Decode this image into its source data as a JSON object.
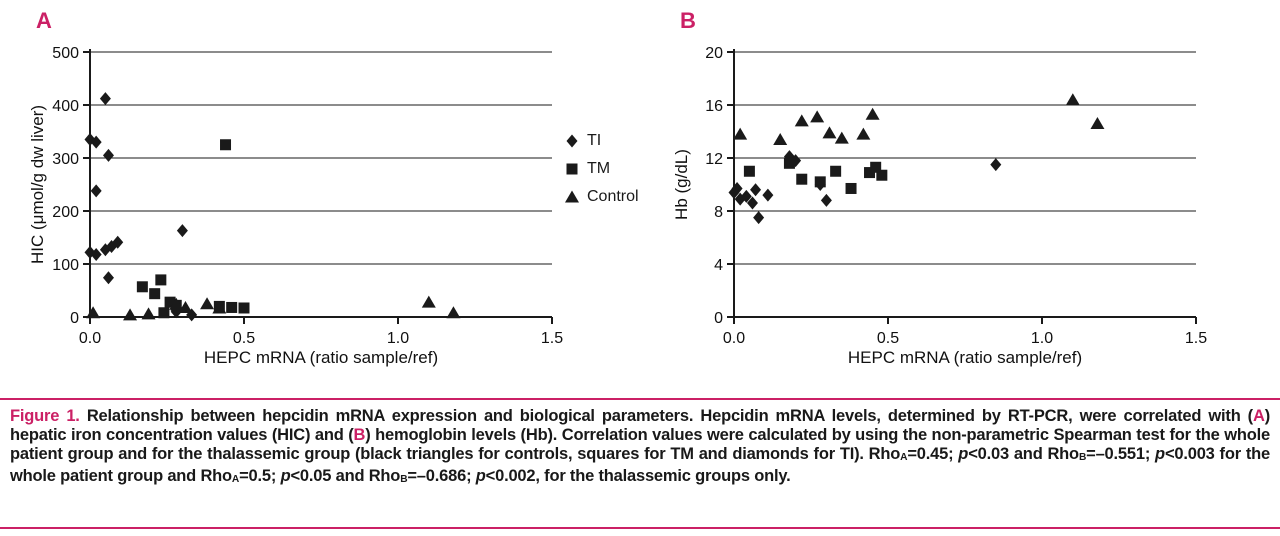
{
  "colors": {
    "accent": "#cb2065",
    "marker": "#1a1a1a"
  },
  "panels": [
    {
      "label": "A"
    },
    {
      "label": "B"
    }
  ],
  "legend": {
    "items": [
      {
        "label": "TI",
        "marker": "diamond"
      },
      {
        "label": "TM",
        "marker": "square"
      },
      {
        "label": "Control",
        "marker": "triangle"
      }
    ]
  },
  "chart_data": [
    {
      "type": "scatter",
      "panel": "A",
      "xlabel": "HEPC mRNA (ratio sample/ref)",
      "ylabel": "HIC (μmol/g dw liver)",
      "xlim": [
        0,
        1.5
      ],
      "ylim": [
        0,
        500
      ],
      "xticks": [
        0,
        0.5,
        1.0,
        1.5
      ],
      "xtick_labels": [
        "0.0",
        "0.5",
        "1.0",
        "1.5"
      ],
      "yticks": [
        0,
        100,
        200,
        300,
        400,
        500
      ],
      "ytick_labels": [
        "0",
        "100",
        "200",
        "300",
        "400",
        "500"
      ],
      "grid": "horizontal",
      "legend_position": "right-of-panel-A",
      "series": [
        {
          "name": "TI",
          "marker": "diamond",
          "points": [
            [
              0.0,
              335
            ],
            [
              0.02,
              330
            ],
            [
              0.05,
              412
            ],
            [
              0.06,
              305
            ],
            [
              0.02,
              238
            ],
            [
              0.0,
              122
            ],
            [
              0.02,
              118
            ],
            [
              0.05,
              127
            ],
            [
              0.07,
              133
            ],
            [
              0.09,
              141
            ],
            [
              0.06,
              74
            ],
            [
              0.3,
              163
            ],
            [
              0.28,
              10
            ],
            [
              0.33,
              4
            ]
          ]
        },
        {
          "name": "TM",
          "marker": "square",
          "points": [
            [
              0.44,
              325
            ],
            [
              0.17,
              57
            ],
            [
              0.21,
              44
            ],
            [
              0.23,
              70
            ],
            [
              0.26,
              28
            ],
            [
              0.28,
              22
            ],
            [
              0.42,
              20
            ],
            [
              0.46,
              18
            ],
            [
              0.5,
              17
            ],
            [
              0.24,
              8
            ]
          ]
        },
        {
          "name": "Control",
          "marker": "triangle",
          "points": [
            [
              0.01,
              8
            ],
            [
              0.13,
              4
            ],
            [
              0.19,
              6
            ],
            [
              0.28,
              24
            ],
            [
              0.31,
              18
            ],
            [
              0.38,
              25
            ],
            [
              0.42,
              17
            ],
            [
              1.1,
              28
            ],
            [
              1.18,
              8
            ]
          ]
        }
      ]
    },
    {
      "type": "scatter",
      "panel": "B",
      "xlabel": "HEPC mRNA (ratio sample/ref)",
      "ylabel": "Hb (g/dL)",
      "xlim": [
        0,
        1.5
      ],
      "ylim": [
        0,
        20
      ],
      "xticks": [
        0,
        0.5,
        1.0,
        1.5
      ],
      "xtick_labels": [
        "0.0",
        "0.5",
        "1.0",
        "1.5"
      ],
      "yticks": [
        0,
        4,
        8,
        12,
        16,
        20
      ],
      "ytick_labels": [
        "0",
        "4",
        "8",
        "12",
        "16",
        "20"
      ],
      "grid": "horizontal",
      "series": [
        {
          "name": "TI",
          "marker": "diamond",
          "points": [
            [
              0.0,
              9.4
            ],
            [
              0.01,
              9.7
            ],
            [
              0.02,
              8.9
            ],
            [
              0.04,
              9.1
            ],
            [
              0.06,
              8.6
            ],
            [
              0.07,
              9.6
            ],
            [
              0.08,
              7.5
            ],
            [
              0.11,
              9.2
            ],
            [
              0.18,
              12.1
            ],
            [
              0.2,
              11.8
            ],
            [
              0.28,
              10.0
            ],
            [
              0.3,
              8.8
            ],
            [
              0.85,
              11.5
            ]
          ]
        },
        {
          "name": "TM",
          "marker": "square",
          "points": [
            [
              0.05,
              11.0
            ],
            [
              0.18,
              11.6
            ],
            [
              0.22,
              10.4
            ],
            [
              0.28,
              10.2
            ],
            [
              0.33,
              11.0
            ],
            [
              0.38,
              9.7
            ],
            [
              0.44,
              10.9
            ],
            [
              0.46,
              11.3
            ],
            [
              0.48,
              10.7
            ]
          ]
        },
        {
          "name": "Control",
          "marker": "triangle",
          "points": [
            [
              0.02,
              13.8
            ],
            [
              0.15,
              13.4
            ],
            [
              0.22,
              14.8
            ],
            [
              0.27,
              15.1
            ],
            [
              0.31,
              13.9
            ],
            [
              0.35,
              13.5
            ],
            [
              0.42,
              13.8
            ],
            [
              0.45,
              15.3
            ],
            [
              1.1,
              16.4
            ],
            [
              1.18,
              14.6
            ]
          ]
        }
      ]
    }
  ],
  "caption": {
    "segments": [
      {
        "style": "pink",
        "text": "Figure 1. "
      },
      {
        "style": "text",
        "text": "Relationship between hepcidin mRNA expression and biological parameters. Hepcidin mRNA levels, determined by RT-PCR, were correlated with ("
      },
      {
        "style": "pink",
        "text": "A"
      },
      {
        "style": "text",
        "text": ") hepatic iron concentration values (HIC) and ("
      },
      {
        "style": "pink",
        "text": "B"
      },
      {
        "style": "text",
        "text": ") hemoglobin levels (Hb). Correlation values were calculated by using the non-parametric Spearman test for the whole patient group and for the thalassemic group (black triangles for controls, squares for TM and diamonds for TI). Rho"
      },
      {
        "style": "sub",
        "text": "A"
      },
      {
        "style": "text",
        "text": "=0.45; "
      },
      {
        "style": "italic",
        "text": "p"
      },
      {
        "style": "text",
        "text": "<0.03 and Rho"
      },
      {
        "style": "sub",
        "text": "B"
      },
      {
        "style": "text",
        "text": "=–0.551; "
      },
      {
        "style": "italic",
        "text": "p"
      },
      {
        "style": "text",
        "text": "<0.003 for the whole patient group and Rho"
      },
      {
        "style": "sub",
        "text": "A"
      },
      {
        "style": "text",
        "text": "=0.5; "
      },
      {
        "style": "italic",
        "text": "p"
      },
      {
        "style": "text",
        "text": "<0.05 and Rho"
      },
      {
        "style": "sub",
        "text": "B"
      },
      {
        "style": "text",
        "text": "=–0.686; "
      },
      {
        "style": "italic",
        "text": "p"
      },
      {
        "style": "text",
        "text": "<0.002, for the thalassemic groups only."
      }
    ]
  }
}
